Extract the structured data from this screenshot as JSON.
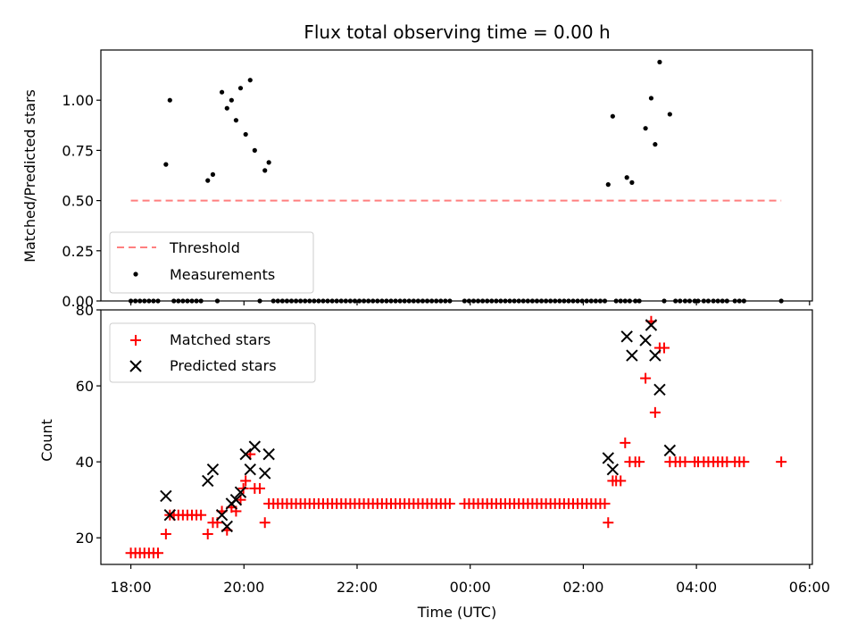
{
  "chart_data": [
    {
      "type": "scatter",
      "panel": "top",
      "title": "Flux total observing time = 0.00 h",
      "xlabel": "",
      "ylabel": "Matched/Predicted stars",
      "x_unit": "hours after 18:00 UTC",
      "xlim": [
        -0.53,
        12.05
      ],
      "ylim": [
        0.0,
        1.25
      ],
      "yticks": [
        0.0,
        0.25,
        0.5,
        0.75,
        1.0
      ],
      "ytick_labels": [
        "0.00",
        "0.25",
        "0.50",
        "0.75",
        "1.00"
      ],
      "grid": false,
      "legend": {
        "position": "lower-left",
        "entries": [
          "Threshold",
          "Measurements"
        ]
      },
      "threshold": {
        "name": "Threshold",
        "value": 0.5,
        "x_range": [
          0.0,
          11.5
        ],
        "color": "#ff7f7f",
        "style": "dashed"
      },
      "series": [
        {
          "name": "Measurements",
          "color": "#000000",
          "marker": "dot",
          "points": [
            [
              0.62,
              0.68
            ],
            [
              0.69,
              1.0
            ],
            [
              1.36,
              0.6
            ],
            [
              1.45,
              0.63
            ],
            [
              1.61,
              1.04
            ],
            [
              1.7,
              0.96
            ],
            [
              1.78,
              1.0
            ],
            [
              1.86,
              0.9
            ],
            [
              1.94,
              1.06
            ],
            [
              2.03,
              0.83
            ],
            [
              2.11,
              1.1
            ],
            [
              2.19,
              0.75
            ],
            [
              2.37,
              0.65
            ],
            [
              2.44,
              0.69
            ],
            [
              8.44,
              0.58
            ],
            [
              8.52,
              0.92
            ],
            [
              8.77,
              0.615
            ],
            [
              8.86,
              0.59
            ],
            [
              9.1,
              0.86
            ],
            [
              9.2,
              1.01
            ],
            [
              9.27,
              0.78
            ],
            [
              9.35,
              1.19
            ],
            [
              9.53,
              0.93
            ]
          ],
          "zero_points_x": [
            0.0,
            0.08,
            0.16,
            0.24,
            0.32,
            0.4,
            0.48,
            0.76,
            0.84,
            0.92,
            1.0,
            1.08,
            1.16,
            1.24,
            1.53,
            2.28,
            2.52,
            2.6,
            2.68,
            2.76,
            2.84,
            2.92,
            3.0,
            3.08,
            3.16,
            3.24,
            3.32,
            3.4,
            3.48,
            3.56,
            3.64,
            3.72,
            3.8,
            3.88,
            3.96,
            4.04,
            4.12,
            4.2,
            4.28,
            4.36,
            4.44,
            4.52,
            4.6,
            4.68,
            4.76,
            4.84,
            4.92,
            5.0,
            5.08,
            5.16,
            5.24,
            5.32,
            5.4,
            5.48,
            5.56,
            5.64,
            5.9,
            5.98,
            6.06,
            6.14,
            6.22,
            6.3,
            6.38,
            6.46,
            6.54,
            6.62,
            6.7,
            6.78,
            6.86,
            6.94,
            7.02,
            7.1,
            7.18,
            7.26,
            7.34,
            7.42,
            7.5,
            7.58,
            7.66,
            7.74,
            7.82,
            7.9,
            7.98,
            8.06,
            8.14,
            8.22,
            8.3,
            8.38,
            8.58,
            8.66,
            8.74,
            8.82,
            8.92,
            8.99,
            9.43,
            9.63,
            9.71,
            9.8,
            9.88,
            9.97,
            10.03,
            10.13,
            10.21,
            10.3,
            10.38,
            10.46,
            10.54,
            10.68,
            10.76,
            10.84,
            11.5
          ]
        }
      ]
    },
    {
      "type": "scatter",
      "panel": "bottom",
      "xlabel": "Time (UTC)",
      "ylabel": "Count",
      "x_unit": "hours after 18:00 UTC",
      "xlim": [
        -0.53,
        12.05
      ],
      "ylim": [
        13,
        80
      ],
      "yticks": [
        20,
        40,
        60,
        80
      ],
      "ytick_labels": [
        "20",
        "40",
        "60",
        "80"
      ],
      "xticks": [
        0,
        2,
        4,
        6,
        8,
        10,
        12
      ],
      "xtick_labels": [
        "18:00",
        "20:00",
        "22:00",
        "00:00",
        "02:00",
        "04:00",
        "06:00"
      ],
      "grid": false,
      "legend": {
        "position": "upper-left",
        "entries": [
          "Matched stars",
          "Predicted stars"
        ]
      },
      "series": [
        {
          "name": "Matched stars",
          "color": "#ff0000",
          "marker": "plus",
          "points": [
            [
              0.0,
              16
            ],
            [
              0.08,
              16
            ],
            [
              0.16,
              16
            ],
            [
              0.24,
              16
            ],
            [
              0.32,
              16
            ],
            [
              0.4,
              16
            ],
            [
              0.48,
              16
            ],
            [
              0.62,
              21
            ],
            [
              0.69,
              26
            ],
            [
              0.76,
              26
            ],
            [
              0.84,
              26
            ],
            [
              0.92,
              26
            ],
            [
              1.0,
              26
            ],
            [
              1.08,
              26
            ],
            [
              1.16,
              26
            ],
            [
              1.24,
              26
            ],
            [
              1.36,
              21
            ],
            [
              1.45,
              24
            ],
            [
              1.53,
              24
            ],
            [
              1.61,
              27
            ],
            [
              1.7,
              22
            ],
            [
              1.78,
              28
            ],
            [
              1.86,
              27
            ],
            [
              1.94,
              30
            ],
            [
              1.99,
              33
            ],
            [
              2.03,
              35
            ],
            [
              2.11,
              42
            ],
            [
              2.19,
              33
            ],
            [
              2.28,
              33
            ],
            [
              2.37,
              24
            ],
            [
              2.44,
              29
            ],
            [
              2.52,
              29
            ],
            [
              2.6,
              29
            ],
            [
              2.68,
              29
            ],
            [
              2.76,
              29
            ],
            [
              2.84,
              29
            ],
            [
              2.92,
              29
            ],
            [
              3.0,
              29
            ],
            [
              3.08,
              29
            ],
            [
              3.16,
              29
            ],
            [
              3.24,
              29
            ],
            [
              3.32,
              29
            ],
            [
              3.4,
              29
            ],
            [
              3.48,
              29
            ],
            [
              3.56,
              29
            ],
            [
              3.64,
              29
            ],
            [
              3.72,
              29
            ],
            [
              3.8,
              29
            ],
            [
              3.88,
              29
            ],
            [
              3.96,
              29
            ],
            [
              4.04,
              29
            ],
            [
              4.12,
              29
            ],
            [
              4.2,
              29
            ],
            [
              4.28,
              29
            ],
            [
              4.36,
              29
            ],
            [
              4.44,
              29
            ],
            [
              4.52,
              29
            ],
            [
              4.6,
              29
            ],
            [
              4.68,
              29
            ],
            [
              4.76,
              29
            ],
            [
              4.84,
              29
            ],
            [
              4.92,
              29
            ],
            [
              5.0,
              29
            ],
            [
              5.08,
              29
            ],
            [
              5.16,
              29
            ],
            [
              5.24,
              29
            ],
            [
              5.32,
              29
            ],
            [
              5.4,
              29
            ],
            [
              5.48,
              29
            ],
            [
              5.56,
              29
            ],
            [
              5.64,
              29
            ],
            [
              5.9,
              29
            ],
            [
              5.98,
              29
            ],
            [
              6.06,
              29
            ],
            [
              6.14,
              29
            ],
            [
              6.22,
              29
            ],
            [
              6.3,
              29
            ],
            [
              6.38,
              29
            ],
            [
              6.46,
              29
            ],
            [
              6.54,
              29
            ],
            [
              6.62,
              29
            ],
            [
              6.7,
              29
            ],
            [
              6.78,
              29
            ],
            [
              6.86,
              29
            ],
            [
              6.94,
              29
            ],
            [
              7.02,
              29
            ],
            [
              7.1,
              29
            ],
            [
              7.18,
              29
            ],
            [
              7.26,
              29
            ],
            [
              7.34,
              29
            ],
            [
              7.42,
              29
            ],
            [
              7.5,
              29
            ],
            [
              7.58,
              29
            ],
            [
              7.66,
              29
            ],
            [
              7.74,
              29
            ],
            [
              7.82,
              29
            ],
            [
              7.9,
              29
            ],
            [
              7.98,
              29
            ],
            [
              8.06,
              29
            ],
            [
              8.14,
              29
            ],
            [
              8.22,
              29
            ],
            [
              8.3,
              29
            ],
            [
              8.38,
              29
            ],
            [
              8.44,
              24
            ],
            [
              8.52,
              35
            ],
            [
              8.58,
              35
            ],
            [
              8.66,
              35
            ],
            [
              8.74,
              45
            ],
            [
              8.82,
              40
            ],
            [
              8.92,
              40
            ],
            [
              8.99,
              40
            ],
            [
              9.1,
              62
            ],
            [
              9.2,
              77
            ],
            [
              9.27,
              53
            ],
            [
              9.35,
              70
            ],
            [
              9.43,
              70
            ],
            [
              9.53,
              40
            ],
            [
              9.63,
              40
            ],
            [
              9.71,
              40
            ],
            [
              9.8,
              40
            ],
            [
              9.97,
              40
            ],
            [
              10.03,
              40
            ],
            [
              10.13,
              40
            ],
            [
              10.21,
              40
            ],
            [
              10.3,
              40
            ],
            [
              10.38,
              40
            ],
            [
              10.46,
              40
            ],
            [
              10.54,
              40
            ],
            [
              10.68,
              40
            ],
            [
              10.76,
              40
            ],
            [
              10.84,
              40
            ],
            [
              11.5,
              40
            ]
          ]
        },
        {
          "name": "Predicted stars",
          "color": "#000000",
          "marker": "x",
          "points": [
            [
              0.62,
              31
            ],
            [
              0.69,
              26
            ],
            [
              1.36,
              35
            ],
            [
              1.45,
              38
            ],
            [
              1.61,
              26
            ],
            [
              1.7,
              23
            ],
            [
              1.78,
              29
            ],
            [
              1.86,
              30
            ],
            [
              1.94,
              32
            ],
            [
              2.03,
              42
            ],
            [
              2.11,
              38
            ],
            [
              2.19,
              44
            ],
            [
              2.37,
              37
            ],
            [
              2.44,
              42
            ],
            [
              8.44,
              41
            ],
            [
              8.52,
              38
            ],
            [
              8.77,
              73
            ],
            [
              8.86,
              68
            ],
            [
              9.1,
              72
            ],
            [
              9.2,
              76
            ],
            [
              9.27,
              68
            ],
            [
              9.35,
              59
            ],
            [
              9.53,
              43
            ]
          ]
        }
      ]
    }
  ]
}
